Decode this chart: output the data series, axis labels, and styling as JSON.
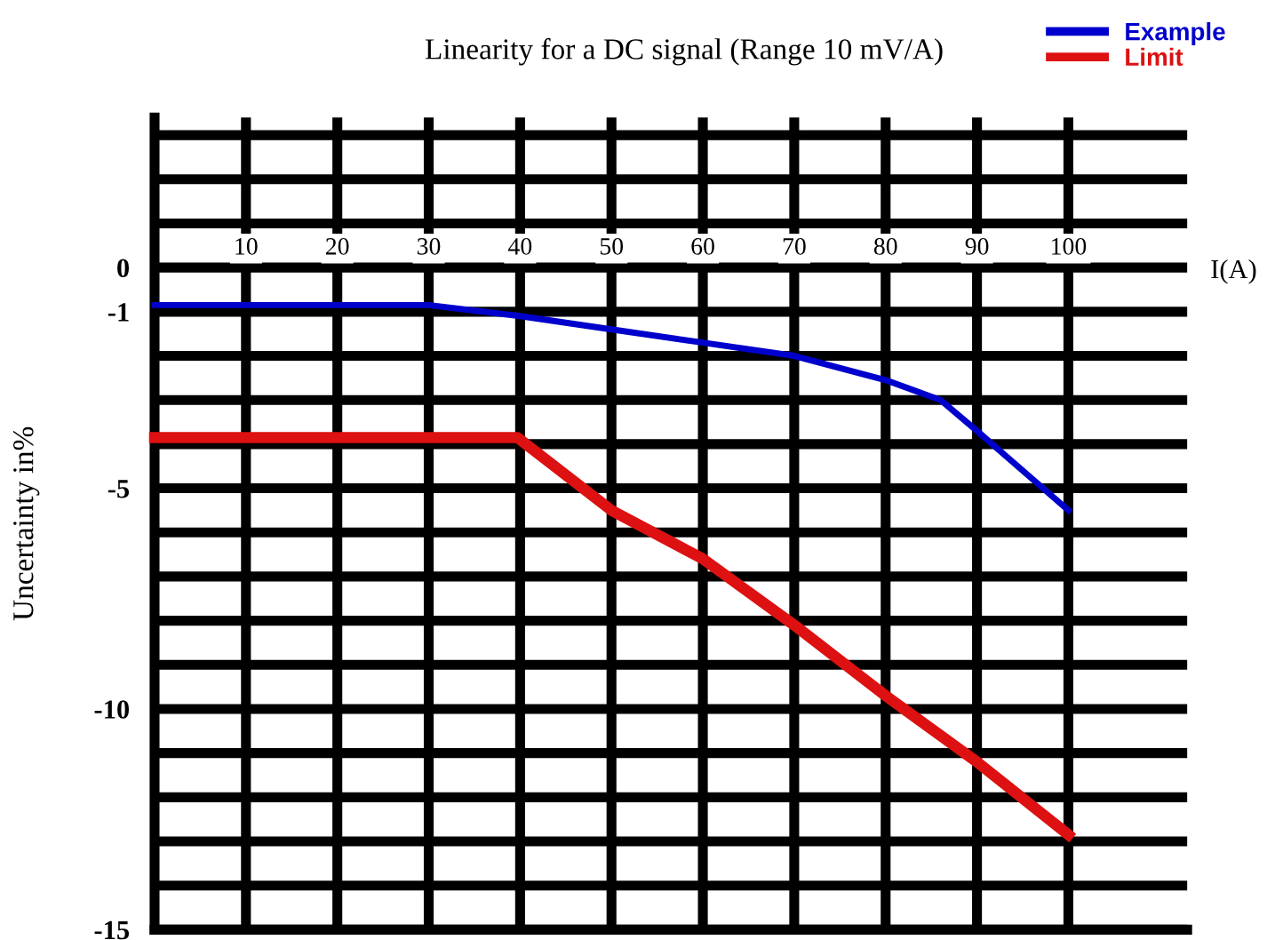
{
  "chart_data": {
    "type": "line",
    "title": "Linearity for a DC signal (Range 10 mV/A)",
    "xlabel": "I(A)",
    "ylabel": "Uncertainty in%",
    "series": [
      {
        "name": "Example",
        "color": "#0000cc",
        "x": [
          0,
          30,
          40,
          50,
          60,
          70,
          80,
          86,
          90,
          100
        ],
        "values": [
          -0.85,
          -0.85,
          -1.1,
          -1.4,
          -1.7,
          -2.0,
          -2.55,
          -3.0,
          -3.7,
          -5.5
        ]
      },
      {
        "name": "Limit",
        "color": "#dd1111",
        "x": [
          0,
          39.7,
          50,
          60,
          70,
          80,
          90,
          100
        ],
        "values": [
          -3.85,
          -3.85,
          -5.5,
          -6.6,
          -8.1,
          -9.7,
          -11.2,
          -12.85
        ]
      }
    ],
    "xlim": [
      0,
      113
    ],
    "ylim": [
      -15,
      3.4
    ],
    "xticks": [
      10,
      20,
      30,
      40,
      50,
      60,
      70,
      80,
      90,
      100
    ],
    "yticks": [
      -15,
      {
        "value": -14,
        "label": null
      },
      {
        "value": -13,
        "label": null
      },
      {
        "value": -12,
        "label": null
      },
      {
        "value": -11,
        "label": null
      },
      -10,
      {
        "value": -9,
        "label": null
      },
      {
        "value": -8,
        "label": null
      },
      {
        "value": -7,
        "label": null
      },
      {
        "value": -6,
        "label": null
      },
      -5,
      {
        "value": -4,
        "label": null
      },
      {
        "value": -3,
        "label": null
      },
      {
        "value": -2,
        "label": null
      },
      -1,
      0,
      {
        "value": 1,
        "label": null
      },
      {
        "value": 2,
        "label": null
      },
      {
        "value": 3,
        "label": null
      }
    ],
    "grid": true,
    "legend": "top right",
    "marker": "none",
    "line_style": "solid"
  }
}
